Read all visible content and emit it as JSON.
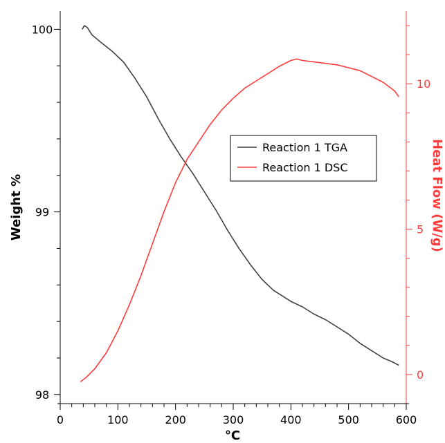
{
  "chart_data": {
    "type": "line",
    "xlabel": "°C",
    "ylabel_left": "Weight %",
    "ylabel_right": "Heat Flow (W/g)",
    "xlim": [
      0,
      600
    ],
    "ylim_left": [
      97.95,
      100.1
    ],
    "ylim_right": [
      -1.0,
      12.5
    ],
    "x_ticks": [
      0,
      100,
      200,
      300,
      400,
      500,
      600
    ],
    "x_tick_labels": [
      "0",
      "100",
      "200",
      "300",
      "400",
      "500",
      "600"
    ],
    "y_left_ticks": [
      98,
      99,
      100
    ],
    "y_left_tick_labels": [
      "98",
      "99",
      "100"
    ],
    "y_right_ticks": [
      0,
      5,
      10
    ],
    "y_right_tick_labels": [
      "0",
      "5",
      "10"
    ],
    "grid": false,
    "legend_position": "center-right",
    "colors": {
      "tga": "#404040",
      "dsc": "#ff3b3b",
      "left_axis": "#000000",
      "right_axis": "#ff3b3b"
    },
    "series": [
      {
        "name": "Reaction 1 TGA",
        "axis": "left",
        "x": [
          38,
          42,
          47,
          55,
          70,
          90,
          110,
          130,
          150,
          170,
          190,
          210,
          230,
          250,
          270,
          290,
          310,
          330,
          350,
          370,
          385,
          400,
          420,
          440,
          460,
          480,
          500,
          520,
          540,
          560,
          575,
          587
        ],
        "y": [
          100.0,
          100.02,
          100.01,
          99.97,
          99.93,
          99.88,
          99.82,
          99.73,
          99.63,
          99.51,
          99.4,
          99.3,
          99.21,
          99.11,
          99.01,
          98.9,
          98.8,
          98.71,
          98.63,
          98.57,
          98.54,
          98.51,
          98.48,
          98.44,
          98.41,
          98.37,
          98.33,
          98.28,
          98.24,
          98.2,
          98.18,
          98.16
        ]
      },
      {
        "name": "Reaction 1 DSC",
        "axis": "right",
        "x": [
          35,
          45,
          60,
          80,
          100,
          120,
          140,
          160,
          180,
          200,
          220,
          240,
          260,
          280,
          300,
          320,
          340,
          360,
          380,
          400,
          410,
          420,
          440,
          460,
          480,
          500,
          520,
          540,
          560,
          580,
          587
        ],
        "y": [
          -0.25,
          -0.1,
          0.2,
          0.75,
          1.5,
          2.4,
          3.4,
          4.5,
          5.6,
          6.6,
          7.4,
          8.0,
          8.6,
          9.1,
          9.5,
          9.85,
          10.1,
          10.35,
          10.6,
          10.8,
          10.85,
          10.8,
          10.75,
          10.7,
          10.65,
          10.55,
          10.45,
          10.25,
          10.05,
          9.75,
          9.55
        ]
      }
    ]
  }
}
